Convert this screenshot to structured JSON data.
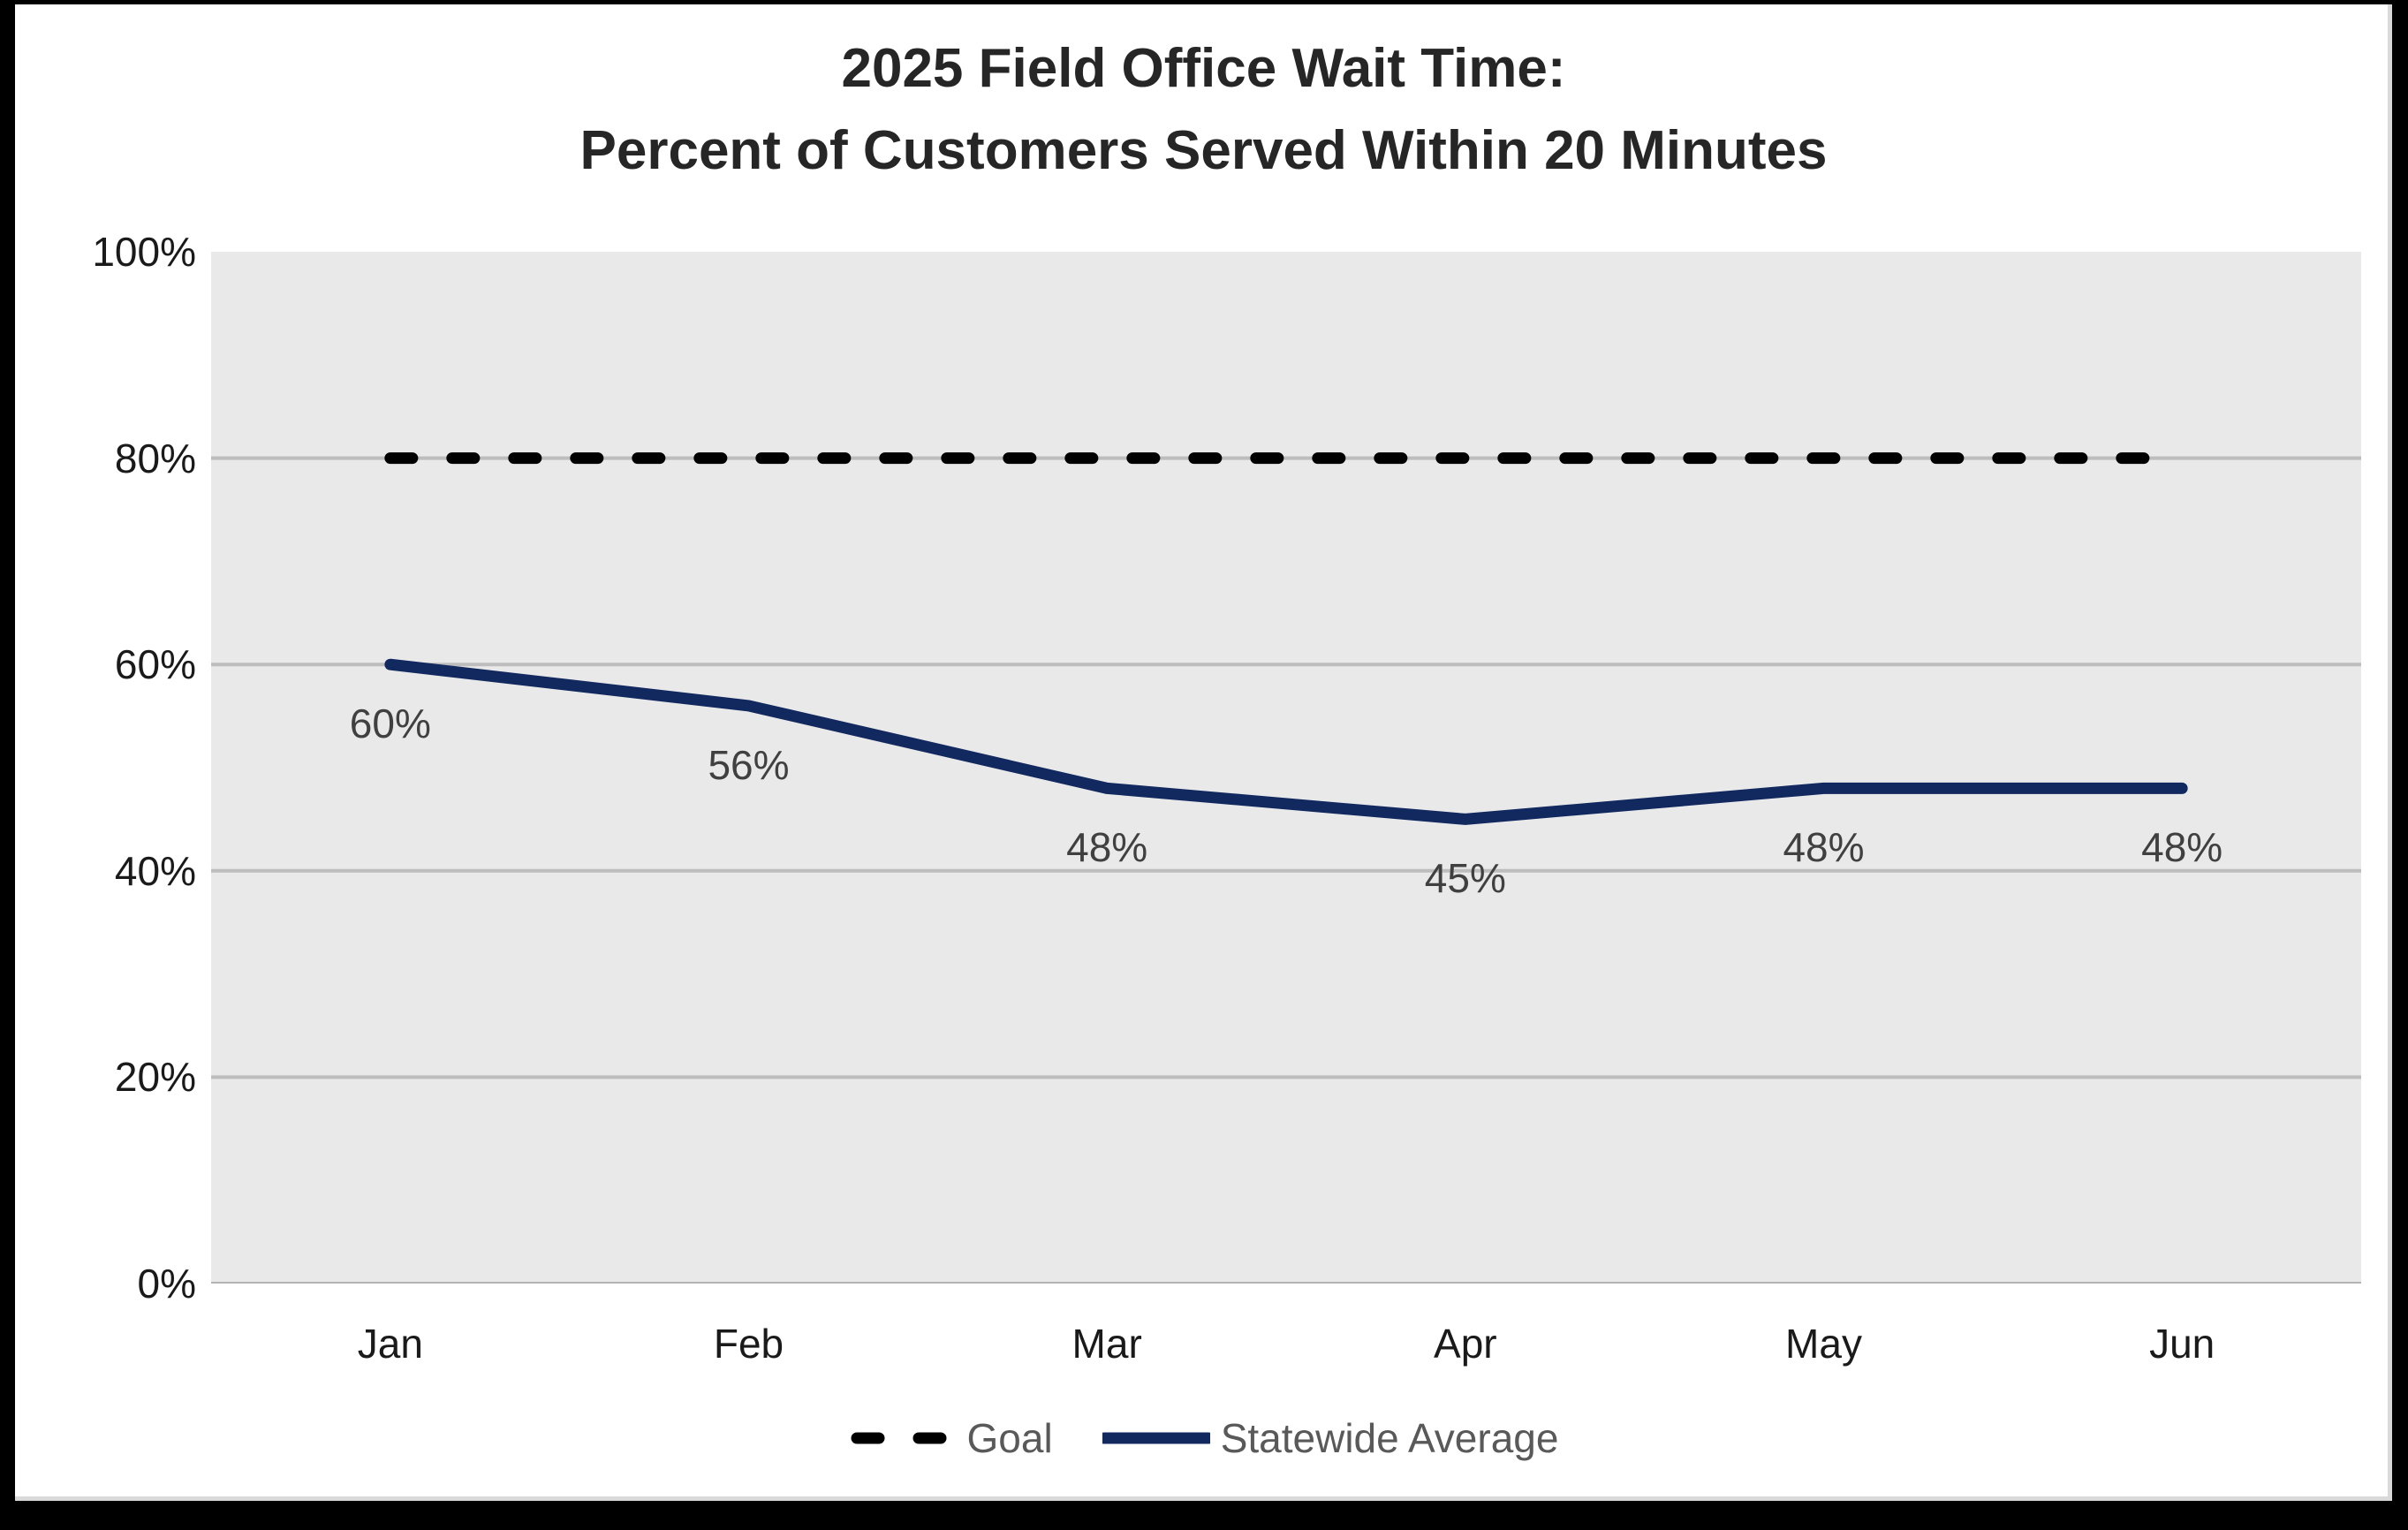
{
  "chart_data": {
    "type": "line",
    "title_lines": [
      "2025 Field Office Wait Time:",
      "Percent of Customers Served Within 20 Minutes"
    ],
    "categories": [
      "Jan",
      "Feb",
      "Mar",
      "Apr",
      "May",
      "Jun"
    ],
    "series": [
      {
        "name": "Goal",
        "values": [
          80,
          80,
          80,
          80,
          80,
          80
        ],
        "line_style": "dashed",
        "color": "#000000"
      },
      {
        "name": "Statewide Average",
        "values": [
          60,
          56,
          48,
          45,
          48,
          48
        ],
        "line_style": "solid",
        "color": "#122960",
        "data_labels": [
          "60%",
          "56%",
          "48%",
          "45%",
          "48%",
          "48%"
        ]
      }
    ],
    "ylim": [
      0,
      100
    ],
    "yticks": [
      {
        "value": 0,
        "label": "0%"
      },
      {
        "value": 20,
        "label": "20%"
      },
      {
        "value": 40,
        "label": "40%"
      },
      {
        "value": 60,
        "label": "60%"
      },
      {
        "value": 80,
        "label": "80%"
      },
      {
        "value": 100,
        "label": "100%"
      }
    ],
    "grid": true,
    "legend_position": "bottom",
    "colors": {
      "plot_background": "#e9e9e9",
      "gridline": "#bdbdbd",
      "axis_line": "#b3b3b3",
      "title_text": "#262626",
      "tick_text": "#1a1a1a",
      "data_label_text": "#404040",
      "legend_text": "#595959",
      "frame": "#000000"
    }
  }
}
